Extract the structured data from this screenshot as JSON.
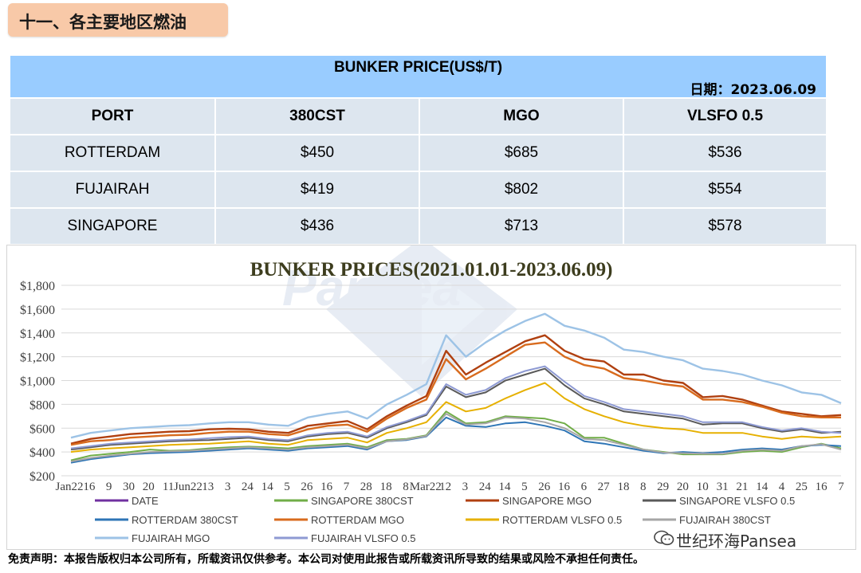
{
  "section_title": "十一、各主要地区燃油",
  "table": {
    "title": "BUNKER PRICE(US$/T)",
    "date_label": "日期：2023.06.09",
    "headers": [
      "PORT",
      "380CST",
      "MGO",
      "VLSFO 0.5"
    ],
    "rows": [
      [
        "ROTTERDAM",
        "$450",
        "$685",
        "$536"
      ],
      [
        "FUJAIRAH",
        "$419",
        "$802",
        "$554"
      ],
      [
        "SINGAPORE",
        "$436",
        "$713",
        "$578"
      ]
    ]
  },
  "watermark_text": "Pansea",
  "chart_data": {
    "type": "line",
    "title": "BUNKER PRICES(2021.01.01-2023.06.09)",
    "xlabel": "",
    "ylabel": "",
    "ylim": [
      200,
      1800
    ],
    "yticks": [
      "$200",
      "$400",
      "$600",
      "$800",
      "$1,000",
      "$1,200",
      "$1,400",
      "$1,600",
      "$1,800"
    ],
    "xticks": [
      "Jan22",
      "16",
      "9",
      "30",
      "20",
      "11",
      "Jun22",
      "13",
      "3",
      "24",
      "14",
      "5",
      "26",
      "16",
      "7",
      "28",
      "18",
      "8",
      "Mar22",
      "12",
      "3",
      "24",
      "14",
      "5",
      "26",
      "16",
      "6",
      "27",
      "18",
      "8",
      "29",
      "20",
      "10",
      "31",
      "21",
      "14",
      "4",
      "25",
      "16",
      "7"
    ],
    "grid": true,
    "legend_position": "bottom",
    "series": [
      {
        "name": "DATE",
        "color": "#7030a0",
        "values": []
      },
      {
        "name": "SINGAPORE 380CST",
        "color": "#70ad47",
        "values": [
          330,
          370,
          385,
          400,
          420,
          410,
          415,
          430,
          440,
          445,
          440,
          430,
          450,
          460,
          470,
          440,
          500,
          510,
          540,
          740,
          640,
          650,
          700,
          690,
          680,
          640,
          520,
          520,
          470,
          420,
          400,
          380,
          380,
          380,
          400,
          410,
          400,
          440,
          470,
          430
        ]
      },
      {
        "name": "SINGAPORE MGO",
        "color": "#b04010",
        "values": [
          470,
          510,
          530,
          550,
          560,
          570,
          575,
          590,
          595,
          590,
          570,
          560,
          620,
          640,
          660,
          590,
          700,
          790,
          870,
          1250,
          1050,
          1150,
          1240,
          1330,
          1380,
          1250,
          1180,
          1160,
          1050,
          1050,
          1000,
          980,
          860,
          870,
          840,
          790,
          740,
          720,
          700,
          710
        ]
      },
      {
        "name": "SINGAPORE VLSFO 0.5",
        "color": "#595959",
        "values": [
          420,
          440,
          460,
          470,
          480,
          490,
          495,
          500,
          510,
          520,
          500,
          490,
          530,
          550,
          560,
          520,
          600,
          650,
          710,
          950,
          860,
          900,
          1000,
          1050,
          1100,
          960,
          850,
          800,
          740,
          720,
          700,
          680,
          630,
          640,
          640,
          600,
          570,
          590,
          560,
          570
        ]
      },
      {
        "name": "ROTTERDAM 380CST",
        "color": "#2e75b6",
        "values": [
          310,
          340,
          360,
          380,
          390,
          395,
          400,
          410,
          420,
          430,
          420,
          410,
          430,
          440,
          450,
          420,
          490,
          500,
          530,
          690,
          620,
          610,
          640,
          650,
          620,
          580,
          490,
          470,
          440,
          410,
          390,
          400,
          390,
          400,
          420,
          430,
          420,
          450,
          460,
          450
        ]
      },
      {
        "name": "ROTTERDAM MGO",
        "color": "#d86b1e",
        "values": [
          460,
          490,
          500,
          520,
          530,
          540,
          545,
          560,
          570,
          570,
          550,
          540,
          590,
          620,
          630,
          570,
          680,
          770,
          840,
          1180,
          1010,
          1100,
          1200,
          1300,
          1320,
          1200,
          1130,
          1100,
          1020,
          1000,
          970,
          950,
          840,
          840,
          820,
          780,
          730,
          700,
          690,
          690
        ]
      },
      {
        "name": "ROTTERDAM VLSFO 0.5",
        "color": "#e6b000",
        "values": [
          400,
          420,
          430,
          440,
          450,
          460,
          465,
          470,
          480,
          490,
          470,
          460,
          500,
          510,
          520,
          480,
          560,
          600,
          650,
          820,
          740,
          770,
          850,
          920,
          980,
          850,
          760,
          700,
          650,
          620,
          600,
          590,
          560,
          560,
          560,
          530,
          510,
          530,
          520,
          530
        ]
      },
      {
        "name": "FUJAIRAH 380CST",
        "color": "#a6a6a6",
        "values": [
          320,
          350,
          370,
          385,
          400,
          405,
          410,
          420,
          430,
          440,
          430,
          420,
          440,
          450,
          460,
          430,
          490,
          505,
          535,
          720,
          630,
          640,
          690,
          680,
          650,
          600,
          510,
          500,
          460,
          420,
          395,
          390,
          385,
          385,
          410,
          420,
          410,
          450,
          465,
          420
        ]
      },
      {
        "name": "FUJAIRAH MGO",
        "color": "#9dc3e6",
        "values": [
          520,
          560,
          580,
          600,
          610,
          620,
          625,
          640,
          650,
          650,
          630,
          620,
          690,
          720,
          740,
          680,
          800,
          880,
          970,
          1380,
          1200,
          1320,
          1420,
          1500,
          1560,
          1460,
          1420,
          1360,
          1260,
          1240,
          1200,
          1170,
          1100,
          1080,
          1050,
          1000,
          960,
          900,
          880,
          810
        ]
      },
      {
        "name": "FUJAIRAH VLSFO 0.5",
        "color": "#8e9ad3",
        "values": [
          430,
          450,
          470,
          480,
          490,
          500,
          505,
          515,
          525,
          530,
          510,
          500,
          540,
          560,
          570,
          530,
          610,
          660,
          720,
          970,
          880,
          920,
          1020,
          1080,
          1120,
          990,
          870,
          820,
          760,
          740,
          720,
          700,
          650,
          650,
          650,
          610,
          580,
          600,
          570,
          560
        ]
      }
    ]
  },
  "footer_text": "免责声明：本报告版权归本公司所有，所载资讯仅供参考。本公司对使用此报告或所载资讯所导致的结果或风险不承担任何责任。",
  "wechat_label": "世纪环海Pansea"
}
